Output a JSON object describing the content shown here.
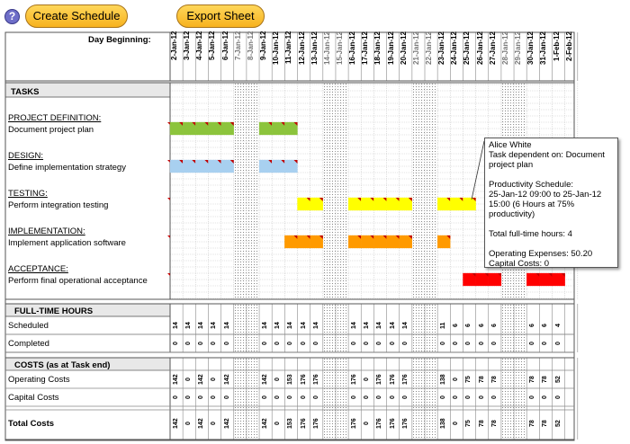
{
  "toolbar": {
    "help_glyph": "?",
    "create_label": "Create Schedule",
    "export_label": "Export Sheet"
  },
  "header": {
    "day_beginning": "Day Beginning:"
  },
  "days": [
    "2-Jan-12",
    "3-Jan-12",
    "4-Jan-12",
    "5-Jan-12",
    "6-Jan-12",
    "7-Jan-12",
    "8-Jan-12",
    "9-Jan-12",
    "10-Jan-12",
    "11-Jan-12",
    "12-Jan-12",
    "13-Jan-12",
    "14-Jan-12",
    "15-Jan-12",
    "16-Jan-12",
    "17-Jan-12",
    "18-Jan-12",
    "19-Jan-12",
    "20-Jan-12",
    "21-Jan-12",
    "22-Jan-12",
    "23-Jan-12",
    "24-Jan-12",
    "25-Jan-12",
    "26-Jan-12",
    "27-Jan-12",
    "28-Jan-12",
    "29-Jan-12",
    "30-Jan-12",
    "31-Jan-12",
    "1-Feb-12",
    "2-Feb-12"
  ],
  "tasks_section": {
    "title": "TASKS"
  },
  "tasks": [
    {
      "category": "PROJECT DEFINITION:",
      "name": "Document project plan",
      "color": "#8cc43c",
      "spans": [
        [
          0,
          4
        ],
        [
          7,
          9
        ]
      ]
    },
    {
      "category": "DESIGN:",
      "name": "Define implementation strategy",
      "color": "#a8d0f0",
      "spans": [
        [
          0,
          4
        ],
        [
          7,
          9
        ]
      ]
    },
    {
      "category": "TESTING:",
      "name": "Perform integration testing",
      "color": "#ffff00",
      "spans": [
        [
          10,
          11
        ],
        [
          14,
          18
        ],
        [
          21,
          23
        ]
      ]
    },
    {
      "category": "IMPLEMENTATION:",
      "name": "Implement application software",
      "color": "#ff9a00",
      "spans": [
        [
          9,
          11
        ],
        [
          14,
          18
        ],
        [
          21,
          21
        ]
      ]
    },
    {
      "category": "ACCEPTANCE:",
      "name": "Perform final operational acceptance",
      "color": "#ff0000",
      "spans": [
        [
          23,
          25
        ],
        [
          28,
          30
        ]
      ]
    }
  ],
  "hours_section": {
    "title": "FULL-TIME HOURS"
  },
  "scheduled_row": {
    "label": "Scheduled",
    "values": [
      "14",
      "14",
      "14",
      "14",
      "14",
      "",
      "",
      "14",
      "14",
      "14",
      "14",
      "14",
      "",
      "",
      "14",
      "14",
      "14",
      "14",
      "14",
      "",
      "",
      "11",
      "6",
      "6",
      "6",
      "6",
      "",
      "",
      "6",
      "6",
      "4",
      ""
    ]
  },
  "completed_row": {
    "label": "Completed",
    "values": [
      "0",
      "0",
      "0",
      "0",
      "0",
      "",
      "",
      "0",
      "0",
      "0",
      "0",
      "0",
      "",
      "",
      "0",
      "0",
      "0",
      "0",
      "0",
      "",
      "",
      "0",
      "0",
      "0",
      "0",
      "0",
      "",
      "",
      "0",
      "0",
      "0",
      ""
    ]
  },
  "costs_section": {
    "title": "COSTS (as at Task end)"
  },
  "operating_row": {
    "label": "Operating Costs",
    "values": [
      "142",
      "0",
      "142",
      "0",
      "142",
      "",
      "",
      "142",
      "0",
      "153",
      "176",
      "176",
      "",
      "",
      "176",
      "0",
      "176",
      "176",
      "176",
      "",
      "",
      "138",
      "0",
      "75",
      "78",
      "78",
      "",
      "",
      "78",
      "78",
      "52",
      ""
    ]
  },
  "capital_row": {
    "label": "Capital Costs",
    "values": [
      "0",
      "0",
      "0",
      "0",
      "0",
      "",
      "",
      "0",
      "0",
      "0",
      "0",
      "0",
      "",
      "",
      "0",
      "0",
      "0",
      "0",
      "0",
      "",
      "",
      "0",
      "0",
      "0",
      "0",
      "0",
      "",
      "",
      "0",
      "0",
      "0",
      ""
    ]
  },
  "total_row": {
    "label": "Total Costs",
    "values": [
      "142",
      "0",
      "142",
      "0",
      "142",
      "",
      "",
      "142",
      "0",
      "153",
      "176",
      "176",
      "",
      "",
      "176",
      "0",
      "176",
      "176",
      "176",
      "",
      "",
      "138",
      "0",
      "75",
      "78",
      "78",
      "",
      "",
      "78",
      "78",
      "52",
      ""
    ]
  },
  "tooltip": {
    "text": "Alice White\nTask dependent on: Document project plan\n\nProductivity Schedule:\n25-Jan-12 09:00 to 25-Jan-12 15:00 (6 Hours at 75% productivity)\n\nTotal full-time hours: 4\n\nOperating Expenses: 50.20\nCapital Costs: 0"
  }
}
